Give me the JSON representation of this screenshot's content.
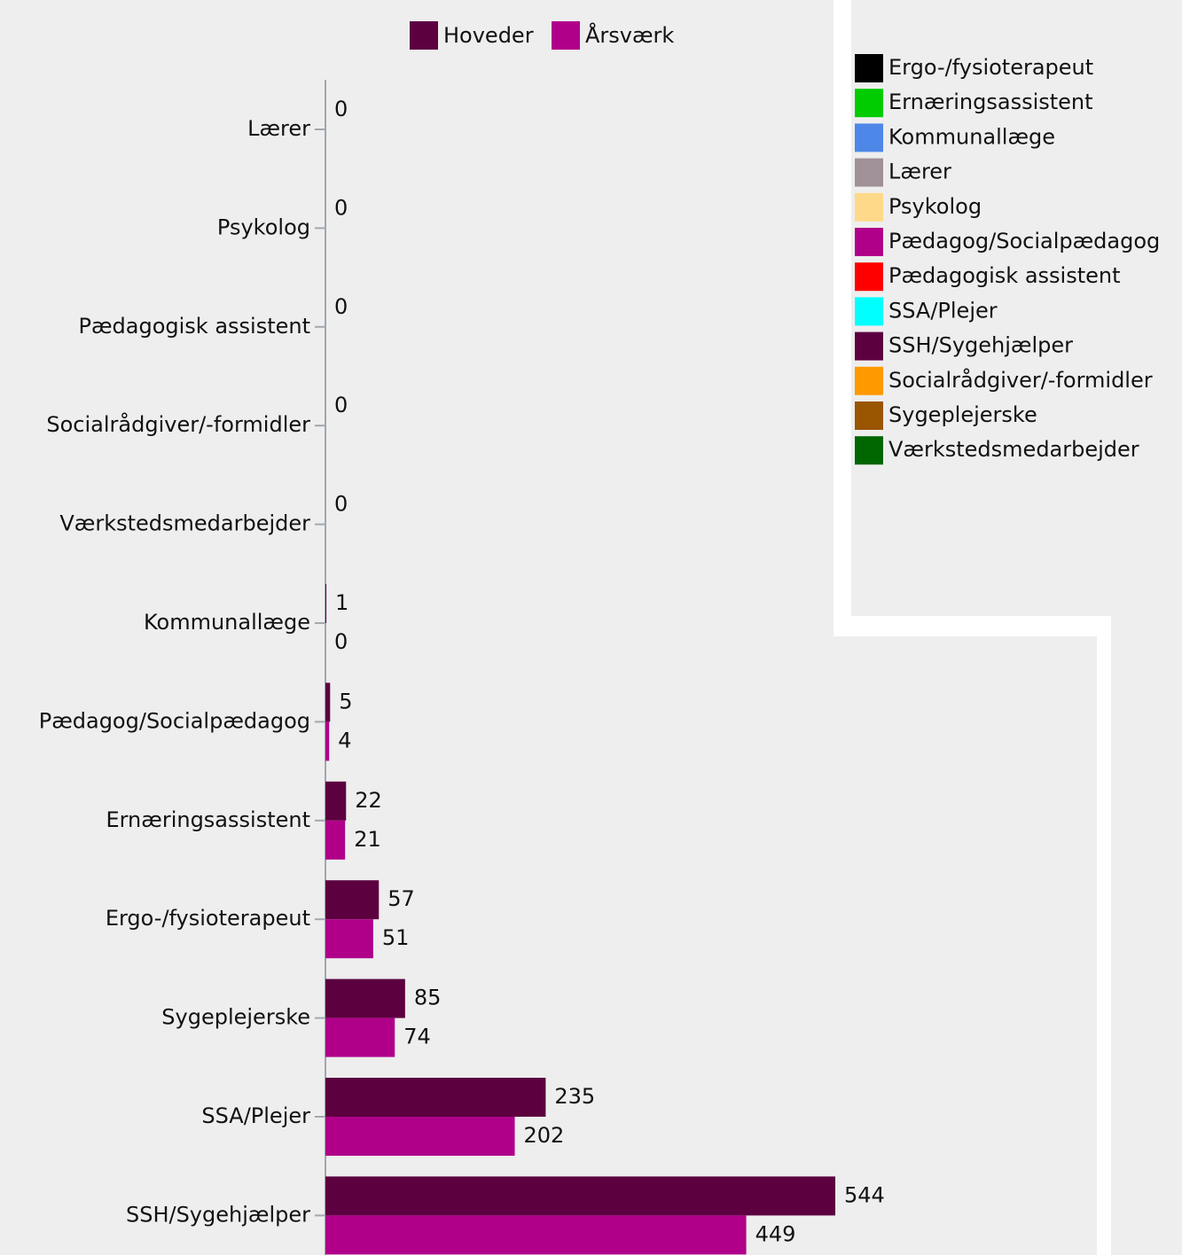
{
  "chart_data": {
    "type": "bar",
    "orientation": "horizontal",
    "categories": [
      "Lærer",
      "Psykolog",
      "Pædagogisk assistent",
      "Socialrådgiver/-formidler",
      "Værkstedsmedarbejder",
      "Kommunallæge",
      "Pædagog/Socialpædagog",
      "Ernæringsassistent",
      "Ergo-/fysioterapeut",
      "Sygeplejerske",
      "SSA/Plejer",
      "SSH/Sygehjælper"
    ],
    "series": [
      {
        "name": "Hoveder",
        "color": "#5c0040",
        "values": [
          0,
          0,
          0,
          0,
          0,
          1,
          5,
          22,
          57,
          85,
          235,
          544
        ]
      },
      {
        "name": "Årsværk",
        "color": "#b0008a",
        "values": [
          null,
          null,
          null,
          null,
          null,
          0,
          4,
          21,
          51,
          74,
          202,
          449
        ]
      }
    ],
    "xlim": [
      0,
      544
    ],
    "legend": "top",
    "color_legend": [
      {
        "name": "Ergo-/fysioterapeut",
        "color": "#000000"
      },
      {
        "name": "Ernæringsassistent",
        "color": "#00cc00"
      },
      {
        "name": "Kommunallæge",
        "color": "#4d88e8"
      },
      {
        "name": "Lærer",
        "color": "#a09098"
      },
      {
        "name": "Psykolog",
        "color": "#ffd98a"
      },
      {
        "name": "Pædagog/Socialpædagog",
        "color": "#b0008a"
      },
      {
        "name": "Pædagogisk assistent",
        "color": "#ff0000"
      },
      {
        "name": "SSA/Plejer",
        "color": "#00ffff"
      },
      {
        "name": "SSH/Sygehjælper",
        "color": "#5c0040"
      },
      {
        "name": "Socialrådgiver/-formidler",
        "color": "#ff9900"
      },
      {
        "name": "Sygeplejerske",
        "color": "#995500"
      },
      {
        "name": "Værkstedsmedarbejder",
        "color": "#006600"
      }
    ]
  }
}
